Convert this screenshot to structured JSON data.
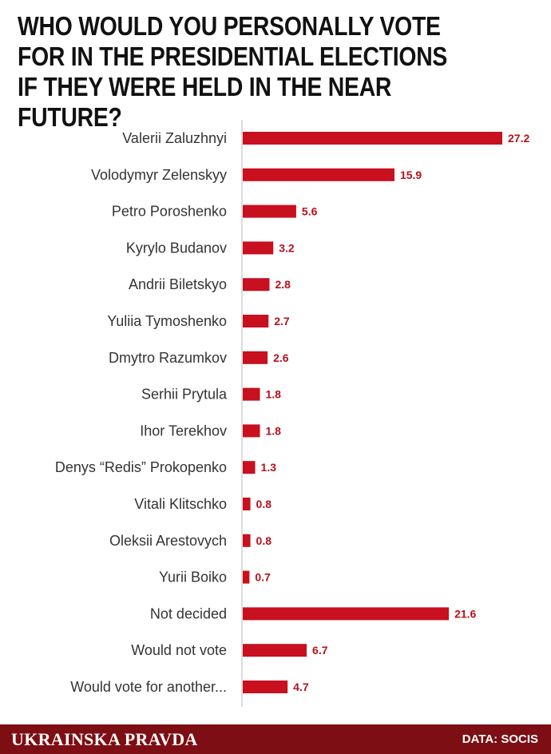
{
  "colors": {
    "bar": "#c8101e",
    "value_label": "#b5121b",
    "footer_bg": "#7d0e14",
    "axis": "#bbbbbb"
  },
  "chart_data": {
    "type": "bar",
    "orientation": "horizontal",
    "title": "WHO WOULD YOU PERSONALLY VOTE FOR IN THE PRESIDENTIAL ELECTIONS IF THEY WERE HELD IN THE NEAR FUTURE?",
    "categories": [
      "Valerii Zaluzhnyi",
      "Volodymyr Zelenskyy",
      "Petro Poroshenko",
      "Kyrylo Budanov",
      "Andrii Biletskyo",
      "Yuliia Tymoshenko",
      "Dmytro Razumkov",
      "Serhii Prytula",
      "Ihor Terekhov",
      "Denys “Redis” Prokopenko",
      "Vitali Klitschko",
      "Oleksii Arestovych",
      "Yurii Boiko",
      "Not decided",
      "Would not vote",
      "Would vote for another..."
    ],
    "values": [
      27.2,
      15.9,
      5.6,
      3.2,
      2.8,
      2.7,
      2.6,
      1.8,
      1.8,
      1.3,
      0.8,
      0.8,
      0.7,
      21.6,
      6.7,
      4.7
    ],
    "value_labels": [
      "27.2",
      "15.9",
      "5.6",
      "3.2",
      "2.8",
      "2.7",
      "2.6",
      "1.8",
      "1.8",
      "1.3",
      "0.8",
      "0.8",
      "0.7",
      "21.6",
      "6.7",
      "4.7"
    ],
    "xlim": [
      0,
      27.2
    ],
    "grid": false,
    "legend": "none"
  },
  "footer": {
    "brand": "UKRAINSKA PRAVDA",
    "source": "DATA: SOCIS"
  }
}
